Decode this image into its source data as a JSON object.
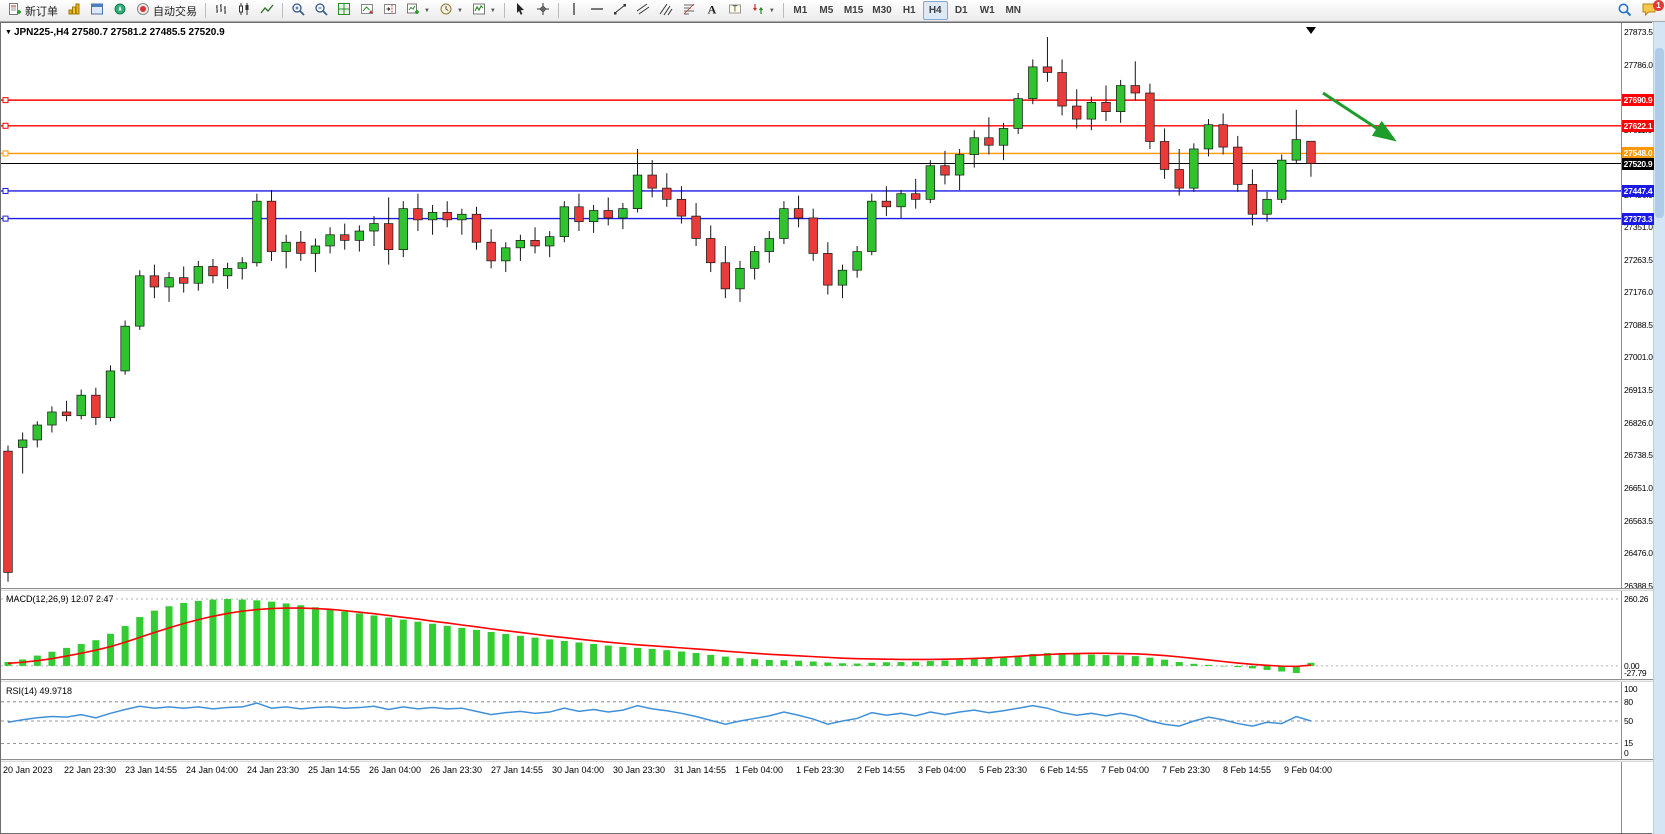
{
  "toolbar": {
    "new_order_label": "新订单",
    "auto_trading_label": "自动交易",
    "timeframes": [
      "M1",
      "M5",
      "M15",
      "M30",
      "H1",
      "H4",
      "D1",
      "W1",
      "MN"
    ],
    "active_timeframe": "H4",
    "notification_count": "1",
    "icons": [
      "new-order",
      "market-watch",
      "data-window",
      "navigator",
      "auto-trading",
      "bar-chart",
      "candlestick-chart",
      "line-chart",
      "zoom-in",
      "zoom-out",
      "tile-windows",
      "auto-scroll",
      "chart-shift",
      "new-chart",
      "profiles-clock",
      "indicators",
      "cursor",
      "crosshair",
      "vertical-line",
      "horizontal-line",
      "trendline",
      "equidistant-channel",
      "andrews-pitchfork",
      "fibonacci-retracement",
      "text",
      "text-label",
      "arrows",
      "search",
      "notifications"
    ]
  },
  "chart": {
    "symbol_info": "JPN225-,H4  27580.7 27581.2 27485.5 27520.9",
    "ylim": [
      26388.5,
      27873.5
    ],
    "bull_color": "#2fc32f",
    "bear_color": "#ea3b3b",
    "arrow_color": "#1d9e2c",
    "price_axis": [
      "27873.5",
      "27786.0",
      "27698.5",
      "27611.0",
      "27523.5",
      "27436.0",
      "27351.0",
      "27263.5",
      "27176.0",
      "27088.5",
      "27001.0",
      "26913.5",
      "26826.0",
      "26738.5",
      "26651.0",
      "26563.5",
      "26476.0",
      "26388.5"
    ],
    "hlines": [
      {
        "price": 27690.9,
        "label": "27690.9",
        "color": "#ff0000"
      },
      {
        "price": 27622.1,
        "label": "27622.1",
        "color": "#ff0000"
      },
      {
        "price": 27548.0,
        "label": "27548.0",
        "color": "#ff9800"
      },
      {
        "price": 27520.9,
        "label": "27520.9",
        "color": "#000000",
        "current": true
      },
      {
        "price": 27447.4,
        "label": "27447.4",
        "color": "#1a1ae6"
      },
      {
        "price": 27373.3,
        "label": "27373.3",
        "color": "#1a1ae6"
      }
    ]
  },
  "chart_data": {
    "type": "candlestick",
    "title": "JPN225- H4",
    "candles": [
      [
        26750,
        26765,
        26400,
        26425
      ],
      [
        26760,
        26800,
        26690,
        26780
      ],
      [
        26780,
        26830,
        26760,
        26820
      ],
      [
        26820,
        26870,
        26800,
        26855
      ],
      [
        26855,
        26885,
        26830,
        26845
      ],
      [
        26845,
        26915,
        26835,
        26900
      ],
      [
        26900,
        26920,
        26820,
        26840
      ],
      [
        26840,
        26980,
        26830,
        26965
      ],
      [
        26965,
        27100,
        26955,
        27085
      ],
      [
        27085,
        27235,
        27075,
        27220
      ],
      [
        27220,
        27250,
        27160,
        27190
      ],
      [
        27190,
        27230,
        27150,
        27215
      ],
      [
        27215,
        27245,
        27175,
        27200
      ],
      [
        27200,
        27260,
        27180,
        27245
      ],
      [
        27245,
        27265,
        27200,
        27220
      ],
      [
        27220,
        27255,
        27185,
        27240
      ],
      [
        27240,
        27270,
        27210,
        27255
      ],
      [
        27255,
        27440,
        27245,
        27420
      ],
      [
        27420,
        27450,
        27260,
        27285
      ],
      [
        27285,
        27330,
        27240,
        27310
      ],
      [
        27310,
        27340,
        27260,
        27280
      ],
      [
        27280,
        27320,
        27230,
        27300
      ],
      [
        27300,
        27350,
        27280,
        27330
      ],
      [
        27330,
        27360,
        27290,
        27315
      ],
      [
        27315,
        27355,
        27285,
        27340
      ],
      [
        27340,
        27380,
        27300,
        27360
      ],
      [
        27360,
        27430,
        27250,
        27290
      ],
      [
        27290,
        27420,
        27270,
        27400
      ],
      [
        27400,
        27440,
        27340,
        27370
      ],
      [
        27370,
        27410,
        27330,
        27390
      ],
      [
        27390,
        27420,
        27350,
        27370
      ],
      [
        27370,
        27400,
        27330,
        27385
      ],
      [
        27385,
        27405,
        27290,
        27310
      ],
      [
        27310,
        27345,
        27240,
        27260
      ],
      [
        27260,
        27310,
        27230,
        27295
      ],
      [
        27295,
        27330,
        27260,
        27315
      ],
      [
        27315,
        27350,
        27280,
        27300
      ],
      [
        27300,
        27340,
        27270,
        27325
      ],
      [
        27325,
        27420,
        27310,
        27405
      ],
      [
        27405,
        27440,
        27340,
        27365
      ],
      [
        27365,
        27410,
        27335,
        27395
      ],
      [
        27395,
        27430,
        27355,
        27375
      ],
      [
        27375,
        27415,
        27345,
        27400
      ],
      [
        27400,
        27560,
        27390,
        27490
      ],
      [
        27490,
        27530,
        27430,
        27455
      ],
      [
        27455,
        27495,
        27405,
        27425
      ],
      [
        27425,
        27460,
        27360,
        27380
      ],
      [
        27380,
        27415,
        27300,
        27320
      ],
      [
        27320,
        27355,
        27230,
        27255
      ],
      [
        27255,
        27300,
        27160,
        27185
      ],
      [
        27185,
        27260,
        27150,
        27240
      ],
      [
        27240,
        27300,
        27210,
        27285
      ],
      [
        27285,
        27340,
        27255,
        27320
      ],
      [
        27320,
        27420,
        27305,
        27400
      ],
      [
        27400,
        27435,
        27350,
        27375
      ],
      [
        27375,
        27400,
        27260,
        27280
      ],
      [
        27280,
        27310,
        27170,
        27195
      ],
      [
        27195,
        27250,
        27160,
        27235
      ],
      [
        27235,
        27300,
        27215,
        27285
      ],
      [
        27285,
        27440,
        27275,
        27420
      ],
      [
        27420,
        27460,
        27380,
        27405
      ],
      [
        27405,
        27450,
        27375,
        27440
      ],
      [
        27440,
        27480,
        27400,
        27425
      ],
      [
        27425,
        27530,
        27415,
        27515
      ],
      [
        27515,
        27555,
        27465,
        27490
      ],
      [
        27490,
        27560,
        27450,
        27545
      ],
      [
        27545,
        27610,
        27510,
        27590
      ],
      [
        27590,
        27645,
        27545,
        27570
      ],
      [
        27570,
        27630,
        27530,
        27615
      ],
      [
        27615,
        27710,
        27600,
        27695
      ],
      [
        27695,
        27800,
        27680,
        27780
      ],
      [
        27780,
        27860,
        27740,
        27765
      ],
      [
        27765,
        27800,
        27650,
        27675
      ],
      [
        27675,
        27720,
        27615,
        27640
      ],
      [
        27640,
        27700,
        27610,
        27685
      ],
      [
        27685,
        27730,
        27635,
        27660
      ],
      [
        27660,
        27745,
        27630,
        27730
      ],
      [
        27730,
        27795,
        27690,
        27710
      ],
      [
        27710,
        27735,
        27560,
        27580
      ],
      [
        27580,
        27615,
        27480,
        27505
      ],
      [
        27505,
        27560,
        27435,
        27455
      ],
      [
        27455,
        27575,
        27445,
        27560
      ],
      [
        27560,
        27640,
        27540,
        27625
      ],
      [
        27625,
        27655,
        27545,
        27565
      ],
      [
        27565,
        27595,
        27445,
        27465
      ],
      [
        27465,
        27505,
        27355,
        27385
      ],
      [
        27385,
        27445,
        27365,
        27425
      ],
      [
        27425,
        27545,
        27415,
        27530
      ],
      [
        27530,
        27665,
        27520,
        27585
      ],
      [
        27580.7,
        27581.2,
        27485.5,
        27520.9
      ]
    ],
    "macd": {
      "label": "MACD(12,26,9) 12.07 2.47",
      "ylim": [
        -27.79,
        260.26
      ],
      "axis": [
        "260.26",
        "0.00",
        "-27.79"
      ],
      "histogram_color": "#33cc33",
      "signal_color": "#ff0000",
      "histogram": [
        15,
        25,
        40,
        55,
        70,
        85,
        100,
        125,
        155,
        190,
        215,
        232,
        245,
        253,
        258,
        260.26,
        258,
        255,
        250,
        243,
        236,
        228,
        220,
        212,
        204,
        196,
        188,
        180,
        172,
        164,
        156,
        148,
        140,
        132,
        124,
        117,
        110,
        103,
        97,
        91,
        85,
        79,
        74,
        70,
        66,
        61,
        56,
        50,
        43,
        36,
        30,
        26,
        23,
        22,
        20,
        17,
        13,
        10,
        9,
        12,
        14,
        15,
        16,
        19,
        21,
        24,
        28,
        31,
        35,
        40,
        46,
        50,
        50,
        47,
        44,
        42,
        41,
        38,
        32,
        24,
        15,
        8,
        4,
        0,
        -5,
        -10,
        -16,
        -22,
        -27.79,
        12.07
      ],
      "signal": [
        10,
        14,
        20,
        28,
        38,
        49,
        61,
        75,
        92,
        111,
        130,
        148,
        165,
        180,
        193,
        204,
        213,
        219,
        223,
        225,
        225,
        223,
        220,
        215,
        209,
        203,
        196,
        189,
        182,
        174,
        167,
        159,
        152,
        144,
        137,
        130,
        123,
        116,
        110,
        104,
        98,
        92,
        87,
        82,
        78,
        74,
        70,
        66,
        62,
        57,
        53,
        49,
        45,
        42,
        39,
        36,
        33,
        30,
        28,
        27,
        26,
        25,
        25,
        25,
        26,
        27,
        29,
        31,
        34,
        37,
        41,
        44,
        47,
        48,
        49,
        49,
        48,
        47,
        44,
        40,
        35,
        29,
        23,
        17,
        11,
        6,
        2,
        -1,
        -2,
        2.47
      ]
    },
    "rsi": {
      "label": "RSI(14) 49.9718",
      "ylim": [
        0,
        100
      ],
      "axis": [
        "100",
        "80",
        "50",
        "15",
        "0"
      ],
      "levels": [
        80,
        50,
        15
      ],
      "line_color": "#4090d8",
      "values": [
        48,
        52,
        55,
        57,
        56,
        60,
        55,
        62,
        68,
        73,
        70,
        72,
        70,
        72,
        69,
        71,
        72,
        78,
        70,
        72,
        69,
        71,
        72,
        70,
        71,
        73,
        68,
        72,
        69,
        71,
        69,
        70,
        65,
        60,
        63,
        65,
        62,
        64,
        70,
        65,
        68,
        64,
        67,
        74,
        69,
        66,
        62,
        57,
        51,
        45,
        50,
        54,
        58,
        64,
        59,
        53,
        45,
        50,
        54,
        63,
        59,
        62,
        58,
        64,
        60,
        64,
        67,
        63,
        66,
        70,
        74,
        70,
        63,
        59,
        62,
        58,
        62,
        58,
        50,
        45,
        42,
        50,
        56,
        52,
        46,
        42,
        48,
        46,
        57,
        49.97
      ]
    },
    "time_axis": [
      "20 Jan 2023",
      "22 Jan 23:30",
      "23 Jan 14:55",
      "24 Jan 04:00",
      "24 Jan 23:30",
      "25 Jan 14:55",
      "26 Jan 04:00",
      "26 Jan 23:30",
      "27 Jan 14:55",
      "30 Jan 04:00",
      "30 Jan 23:30",
      "31 Jan 14:55",
      "1 Feb 04:00",
      "1 Feb 23:30",
      "2 Feb 14:55",
      "3 Feb 04:00",
      "5 Feb 23:30",
      "6 Feb 14:55",
      "7 Feb 04:00",
      "7 Feb 23:30",
      "8 Feb 14:55",
      "9 Feb 04:00"
    ]
  }
}
